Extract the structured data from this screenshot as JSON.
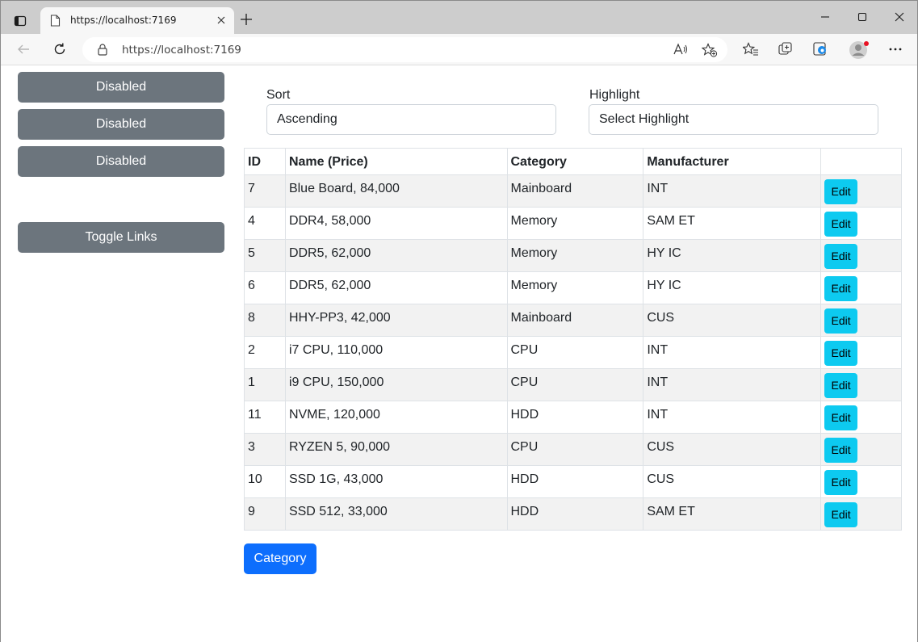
{
  "browser": {
    "tab_title": "https://localhost:7169",
    "url": "https://localhost:7169"
  },
  "sidebar": {
    "buttons": [
      "Disabled",
      "Disabled",
      "Disabled"
    ],
    "toggle_label": "Toggle Links"
  },
  "filters": {
    "sort_label": "Sort",
    "sort_value": "Ascending",
    "highlight_label": "Highlight",
    "highlight_value": "Select Highlight"
  },
  "table": {
    "headers": [
      "ID",
      "Name (Price)",
      "Category",
      "Manufacturer",
      ""
    ],
    "edit_label": "Edit",
    "rows": [
      {
        "id": "7",
        "name": "Blue Board, 84,000",
        "category": "Mainboard",
        "manufacturer": "INT"
      },
      {
        "id": "4",
        "name": "DDR4, 58,000",
        "category": "Memory",
        "manufacturer": "SAM ET"
      },
      {
        "id": "5",
        "name": "DDR5, 62,000",
        "category": "Memory",
        "manufacturer": "HY IC"
      },
      {
        "id": "6",
        "name": "DDR5, 62,000",
        "category": "Memory",
        "manufacturer": "HY IC"
      },
      {
        "id": "8",
        "name": "HHY-PP3, 42,000",
        "category": "Mainboard",
        "manufacturer": "CUS"
      },
      {
        "id": "2",
        "name": "i7 CPU, 110,000",
        "category": "CPU",
        "manufacturer": "INT"
      },
      {
        "id": "1",
        "name": "i9 CPU, 150,000",
        "category": "CPU",
        "manufacturer": "INT"
      },
      {
        "id": "11",
        "name": "NVME, 120,000",
        "category": "HDD",
        "manufacturer": "INT"
      },
      {
        "id": "3",
        "name": "RYZEN 5, 90,000",
        "category": "CPU",
        "manufacturer": "CUS"
      },
      {
        "id": "10",
        "name": "SSD 1G, 43,000",
        "category": "HDD",
        "manufacturer": "CUS"
      },
      {
        "id": "9",
        "name": "SSD 512, 33,000",
        "category": "HDD",
        "manufacturer": "SAM ET"
      }
    ]
  },
  "category_button": "Category",
  "colors": {
    "secondary": "#6c757d",
    "info": "#0dcaf0",
    "primary": "#0d6efd",
    "striped_row": "#f2f2f2"
  }
}
